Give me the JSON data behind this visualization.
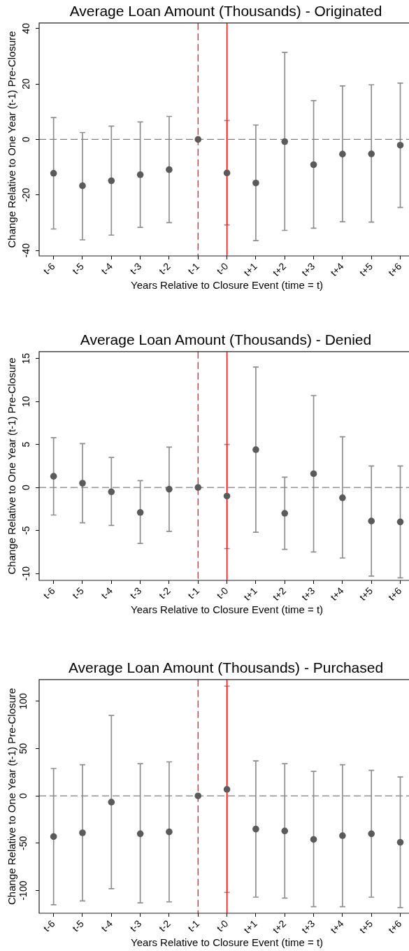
{
  "chart_data": [
    {
      "type": "scatter",
      "title": "Average Loan Amount (Thousands) - Originated",
      "xlabel": "Years Relative to Closure Event (time = t)",
      "ylabel": "Change Relative to One Year (t-1) Pre-Closure",
      "categories": [
        "t-6",
        "t-5",
        "t-4",
        "t-3",
        "t-2",
        "t-1",
        "t-0",
        "t+1",
        "t+2",
        "t+3",
        "t+4",
        "t+5",
        "t+6"
      ],
      "series": [
        {
          "color": "#5a5a5a",
          "values": [
            -12.2,
            -16.7,
            -14.9,
            -12.7,
            -10.9,
            0,
            -12.1,
            -15.7,
            -0.8,
            -9.1,
            -5.3,
            -5.2,
            -2.1
          ],
          "errors": [
            [
              -32.3,
              7.9
            ],
            [
              -36.2,
              2.5
            ],
            [
              -34.5,
              4.8
            ],
            [
              -31.7,
              6.3
            ],
            [
              -30.0,
              8.3
            ],
            null,
            [
              -30.8,
              6.8
            ],
            [
              -36.5,
              5.2
            ],
            [
              -32.8,
              31.4
            ],
            [
              -32.0,
              14.0
            ],
            [
              -29.7,
              19.3
            ],
            [
              -29.8,
              19.7
            ],
            [
              -24.5,
              20.3
            ]
          ]
        }
      ],
      "ylim": [
        -42,
        42
      ],
      "yticks": [
        -40,
        -20,
        0,
        20,
        40
      ],
      "marker": "circle",
      "ref_lines": [
        {
          "axis": "y",
          "value": 0,
          "color": "#808080",
          "line_style": "dashed"
        },
        {
          "axis": "x",
          "value": "t-1",
          "color": "#ff0000",
          "line_style": "dashed"
        },
        {
          "axis": "x",
          "value": "t-0",
          "color": "#ff0000",
          "line_style": "solid"
        }
      ]
    },
    {
      "type": "scatter",
      "title": "Average Loan Amount (Thousands) - Denied",
      "xlabel": "Years Relative to Closure Event (time = t)",
      "ylabel": "Change Relative to One Year (t-1) Pre-Closure",
      "categories": [
        "t-6",
        "t-5",
        "t-4",
        "t-3",
        "t-2",
        "t-1",
        "t-0",
        "t+1",
        "t+2",
        "t+3",
        "t+4",
        "t+5",
        "t+6"
      ],
      "series": [
        {
          "color": "#5a5a5a",
          "values": [
            1.3,
            0.5,
            -0.5,
            -2.9,
            -0.2,
            0,
            -1.0,
            4.4,
            -3.0,
            1.6,
            -1.2,
            -3.9,
            -4.0
          ],
          "errors": [
            [
              -3.2,
              5.8
            ],
            [
              -4.1,
              5.1
            ],
            [
              -4.4,
              3.5
            ],
            [
              -6.5,
              0.8
            ],
            [
              -5.1,
              4.7
            ],
            null,
            [
              -7.1,
              5.0
            ],
            [
              -5.2,
              14.0
            ],
            [
              -7.2,
              1.2
            ],
            [
              -7.5,
              10.7
            ],
            [
              -8.2,
              5.9
            ],
            [
              -10.3,
              2.5
            ],
            [
              -10.5,
              2.5
            ]
          ]
        }
      ],
      "ylim": [
        -10.8,
        15.8
      ],
      "yticks": [
        -10,
        -5,
        0,
        5,
        10,
        15
      ],
      "marker": "circle",
      "ref_lines": [
        {
          "axis": "y",
          "value": 0,
          "color": "#808080",
          "line_style": "dashed"
        },
        {
          "axis": "x",
          "value": "t-1",
          "color": "#ff0000",
          "line_style": "dashed"
        },
        {
          "axis": "x",
          "value": "t-0",
          "color": "#ff0000",
          "line_style": "solid"
        }
      ]
    },
    {
      "type": "scatter",
      "title": "Average Loan Amount (Thousands) - Purchased",
      "xlabel": "Years Relative to Closure Event (time = t)",
      "ylabel": "Change Relative to One Year (t-1) Pre-Closure",
      "categories": [
        "t-6",
        "t-5",
        "t-4",
        "t-3",
        "t-2",
        "t-1",
        "t-0",
        "t+1",
        "t+2",
        "t+3",
        "t+4",
        "t+5",
        "t+6"
      ],
      "series": [
        {
          "color": "#5a5a5a",
          "values": [
            -43,
            -39,
            -6.6,
            -40,
            -38,
            0,
            6.9,
            -35,
            -37,
            -46,
            -42,
            -40,
            -49
          ],
          "errors": [
            [
              -115,
              29
            ],
            [
              -111,
              33
            ],
            [
              -98,
              85
            ],
            [
              -113,
              34
            ],
            [
              -112,
              36
            ],
            null,
            [
              -102,
              116
            ],
            [
              -107,
              37
            ],
            [
              -108,
              34
            ],
            [
              -117,
              26
            ],
            [
              -117,
              33
            ],
            [
              -107,
              27
            ],
            [
              -118,
              20
            ]
          ]
        }
      ],
      "ylim": [
        -124,
        123
      ],
      "yticks": [
        -100,
        -50,
        0,
        50,
        100
      ],
      "marker": "circle",
      "ref_lines": [
        {
          "axis": "y",
          "value": 0,
          "color": "#808080",
          "line_style": "dashed"
        },
        {
          "axis": "x",
          "value": "t-1",
          "color": "#ff0000",
          "line_style": "dashed"
        },
        {
          "axis": "x",
          "value": "t-0",
          "color": "#ff0000",
          "line_style": "solid"
        }
      ]
    }
  ]
}
